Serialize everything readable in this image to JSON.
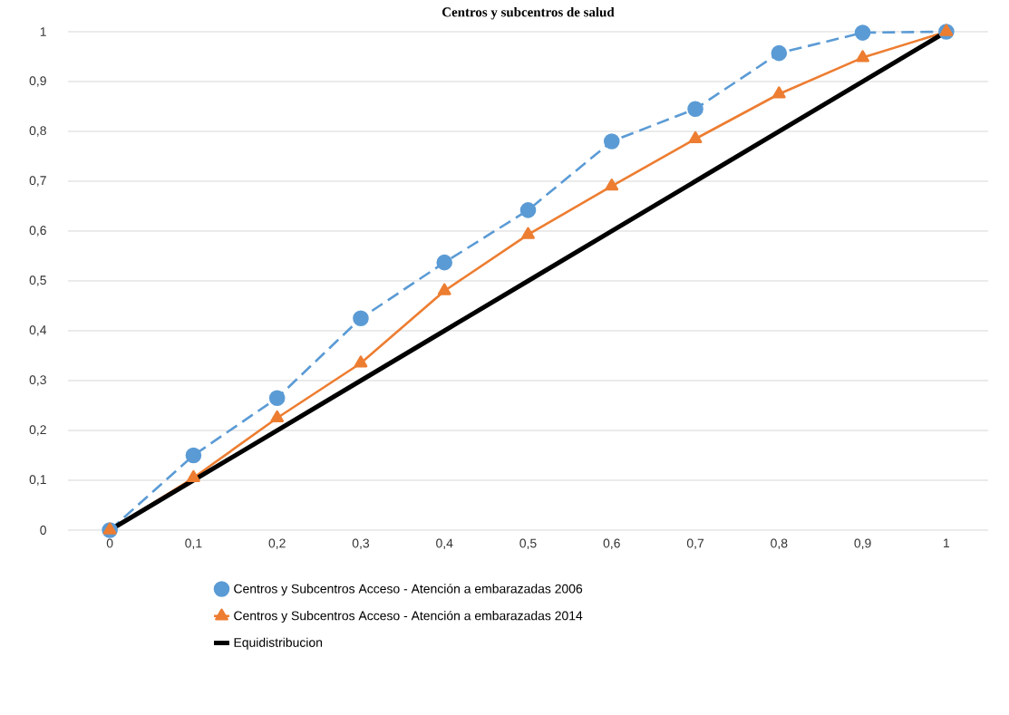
{
  "chart_data": {
    "type": "line",
    "title": "Centros y subcentros de salud",
    "categories": [
      "0",
      "0,1",
      "0,2",
      "0,3",
      "0,4",
      "0,5",
      "0,6",
      "0,7",
      "0,8",
      "0,9",
      "1"
    ],
    "series": [
      {
        "name": "Centros y Subcentros Acceso - Atención a embarazadas 2006",
        "color": "#5b9bd5",
        "marker": "circle",
        "line_style": "dashed",
        "values": [
          0,
          0.15,
          0.265,
          0.425,
          0.537,
          0.642,
          0.78,
          0.845,
          0.957,
          0.998,
          1.0
        ]
      },
      {
        "name": "Centros y Subcentros Acceso - Atención a embarazadas 2014",
        "color": "#ed7d31",
        "marker": "triangle",
        "line_style": "solid",
        "values": [
          0,
          0.105,
          0.225,
          0.335,
          0.48,
          0.593,
          0.69,
          0.785,
          0.875,
          0.948,
          1.0
        ]
      },
      {
        "name": "Equidistribucion",
        "color": "#000000",
        "marker": "none",
        "line_style": "solid",
        "values": [
          0,
          0.1,
          0.2,
          0.3,
          0.4,
          0.5,
          0.6,
          0.7,
          0.8,
          0.9,
          1.0
        ]
      }
    ],
    "ylim": [
      0,
      1
    ],
    "yticks": [
      0,
      {
        "value": 0.1,
        "label": "0,1"
      },
      {
        "value": 0.2,
        "label": "0,2"
      },
      {
        "value": 0.3,
        "label": "0,3"
      },
      {
        "value": 0.4,
        "label": "0,4"
      },
      {
        "value": 0.5,
        "label": "0,5"
      },
      {
        "value": 0.6,
        "label": "0,6"
      },
      {
        "value": 0.7,
        "label": "0,7"
      },
      {
        "value": 0.8,
        "label": "0,8"
      },
      {
        "value": 0.9,
        "label": "0,9"
      },
      1
    ],
    "grid": "y",
    "legend": "bottom"
  }
}
